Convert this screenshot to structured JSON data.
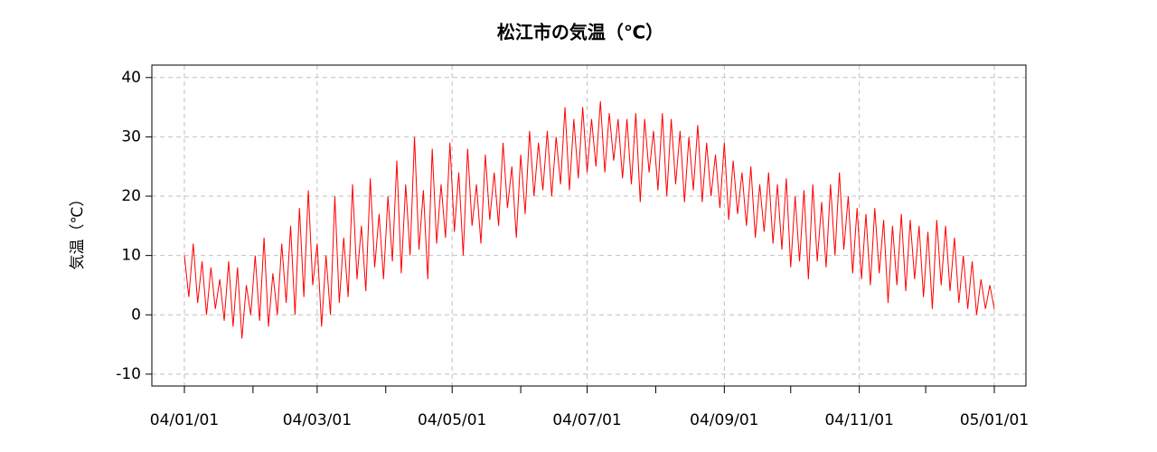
{
  "chart_data": {
    "type": "line",
    "title": "松江市の気温（℃）",
    "y_label": "気温（℃）",
    "xlim": [
      -14.7,
      380.3
    ],
    "xticks": [
      {
        "value": 0,
        "label": "04/01/01"
      },
      {
        "value": 31,
        "label": null
      },
      {
        "value": 60,
        "label": "04/03/01"
      },
      {
        "value": 91,
        "label": null
      },
      {
        "value": 121,
        "label": "04/05/01"
      },
      {
        "value": 152,
        "label": null
      },
      {
        "value": 182,
        "label": "04/07/01"
      },
      {
        "value": 213,
        "label": null
      },
      {
        "value": 244,
        "label": "04/09/01"
      },
      {
        "value": 274,
        "label": null
      },
      {
        "value": 305,
        "label": "04/11/01"
      },
      {
        "value": 335,
        "label": null
      },
      {
        "value": 366,
        "label": "05/01/01"
      }
    ],
    "ylim": [
      -12,
      42.1
    ],
    "yticks": [
      -10,
      0,
      10,
      20,
      30,
      40
    ],
    "grid": true,
    "x": [
      0,
      2,
      4,
      6,
      8,
      10,
      12,
      14,
      16,
      18,
      20,
      22,
      24,
      26,
      28,
      30,
      32,
      34,
      36,
      38,
      40,
      42,
      44,
      46,
      48,
      50,
      52,
      54,
      56,
      58,
      60,
      62,
      64,
      66,
      68,
      70,
      72,
      74,
      76,
      78,
      80,
      82,
      84,
      86,
      88,
      90,
      92,
      94,
      96,
      98,
      100,
      102,
      104,
      106,
      108,
      110,
      112,
      114,
      116,
      118,
      120,
      122,
      124,
      126,
      128,
      130,
      132,
      134,
      136,
      138,
      140,
      142,
      144,
      146,
      148,
      150,
      152,
      154,
      156,
      158,
      160,
      162,
      164,
      166,
      168,
      170,
      172,
      174,
      176,
      178,
      180,
      182,
      184,
      186,
      188,
      190,
      192,
      194,
      196,
      198,
      200,
      202,
      204,
      206,
      208,
      210,
      212,
      214,
      216,
      218,
      220,
      222,
      224,
      226,
      228,
      230,
      232,
      234,
      236,
      238,
      240,
      242,
      244,
      246,
      248,
      250,
      252,
      254,
      256,
      258,
      260,
      262,
      264,
      266,
      268,
      270,
      272,
      274,
      276,
      278,
      280,
      282,
      284,
      286,
      288,
      290,
      292,
      294,
      296,
      298,
      300,
      302,
      304,
      306,
      308,
      310,
      312,
      314,
      316,
      318,
      320,
      322,
      324,
      326,
      328,
      330,
      332,
      334,
      336,
      338,
      340,
      342,
      344,
      346,
      348,
      350,
      352,
      354,
      356,
      358,
      360,
      362,
      364,
      366
    ],
    "series": [
      {
        "color": "#ff0000",
        "values": [
          10,
          3,
          12,
          2,
          9,
          0,
          8,
          1,
          6,
          -1,
          9,
          -2,
          8,
          -4,
          5,
          0,
          10,
          -1,
          13,
          -2,
          7,
          0,
          12,
          2,
          15,
          0,
          18,
          3,
          21,
          5,
          12,
          -2,
          10,
          0,
          20,
          2,
          13,
          3,
          22,
          6,
          15,
          4,
          23,
          8,
          17,
          6,
          20,
          9,
          26,
          7,
          22,
          10,
          30,
          11,
          21,
          6,
          28,
          12,
          22,
          13,
          29,
          14,
          24,
          10,
          28,
          15,
          22,
          12,
          27,
          16,
          24,
          15,
          29,
          18,
          25,
          13,
          27,
          17,
          31,
          20,
          29,
          21,
          31,
          20,
          30,
          22,
          35,
          21,
          33,
          23,
          35,
          24,
          33,
          25,
          36,
          24,
          34,
          26,
          33,
          23,
          33,
          22,
          34,
          19,
          33,
          24,
          31,
          21,
          34,
          20,
          33,
          22,
          31,
          19,
          30,
          21,
          32,
          19,
          29,
          20,
          27,
          18,
          29,
          16,
          26,
          17,
          24,
          15,
          25,
          13,
          22,
          14,
          24,
          12,
          22,
          11,
          23,
          8,
          20,
          9,
          21,
          6,
          22,
          9,
          19,
          8,
          22,
          10,
          24,
          11,
          20,
          7,
          18,
          6,
          17,
          5,
          18,
          7,
          16,
          2,
          15,
          5,
          17,
          4,
          16,
          6,
          15,
          3,
          14,
          1,
          16,
          5,
          15,
          4,
          13,
          2,
          10,
          1,
          9,
          0,
          6,
          1,
          5,
          1
        ]
      }
    ]
  }
}
